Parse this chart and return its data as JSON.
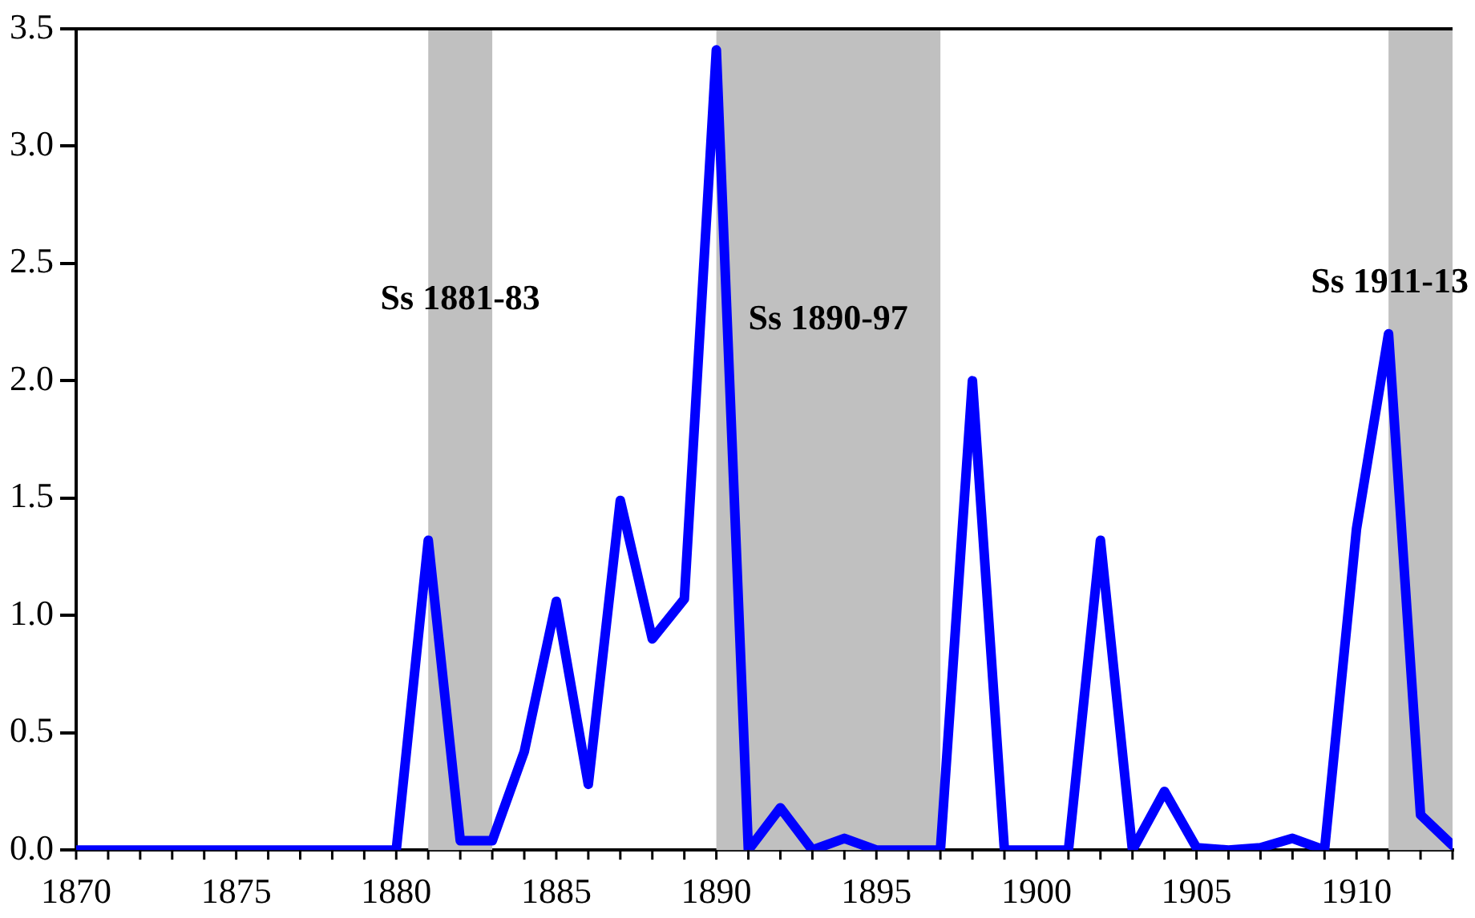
{
  "chart_data": {
    "type": "line",
    "x": [
      1870,
      1871,
      1872,
      1873,
      1874,
      1875,
      1876,
      1877,
      1878,
      1879,
      1880,
      1881,
      1882,
      1883,
      1884,
      1885,
      1886,
      1887,
      1888,
      1889,
      1890,
      1891,
      1892,
      1893,
      1894,
      1895,
      1896,
      1897,
      1898,
      1899,
      1900,
      1901,
      1902,
      1903,
      1904,
      1905,
      1906,
      1907,
      1908,
      1909,
      1910,
      1911,
      1912,
      1913
    ],
    "series": [
      {
        "color": "#0000ff",
        "values": [
          0,
          0,
          0,
          0,
          0,
          0,
          0,
          0,
          0,
          0,
          0,
          1.32,
          0.04,
          0.04,
          0.42,
          1.06,
          0.28,
          1.49,
          0.9,
          1.07,
          3.41,
          0,
          0.18,
          0,
          0.05,
          0,
          0,
          0,
          2.0,
          0,
          0,
          0,
          1.32,
          0,
          0.25,
          0.01,
          0,
          0.01,
          0.05,
          0,
          1.37,
          2.2,
          0.15,
          0.02
        ]
      }
    ],
    "xlim": [
      1870,
      1913
    ],
    "xticks": [
      1870,
      1875,
      1880,
      1885,
      1890,
      1895,
      1900,
      1905,
      1910
    ],
    "ylim": [
      0,
      3.5
    ],
    "yticks": [
      {
        "value": 0,
        "label": "0.0"
      },
      {
        "value": 0.5,
        "label": "0.5"
      },
      {
        "value": 1,
        "label": "1.0"
      },
      {
        "value": 1.5,
        "label": "1.5"
      },
      {
        "value": 2,
        "label": "2.0"
      },
      {
        "value": 2.5,
        "label": "2.5"
      },
      {
        "value": 3,
        "label": "3.0"
      },
      {
        "value": 3.5,
        "label": "3.5"
      }
    ],
    "bands": [
      {
        "axis": "x",
        "from": 1881,
        "to": 1883,
        "label": "Ss 1881-83",
        "color": "#c0c0c0"
      },
      {
        "axis": "x",
        "from": 1890,
        "to": 1897,
        "label": "Ss 1890-97",
        "color": "#c0c0c0"
      },
      {
        "axis": "x",
        "from": 1911,
        "to": 1913,
        "label": "Ss 1911-13",
        "color": "#c0c0c0"
      }
    ],
    "grid": false,
    "marker": "none",
    "line_style": "solid",
    "legend": false
  }
}
